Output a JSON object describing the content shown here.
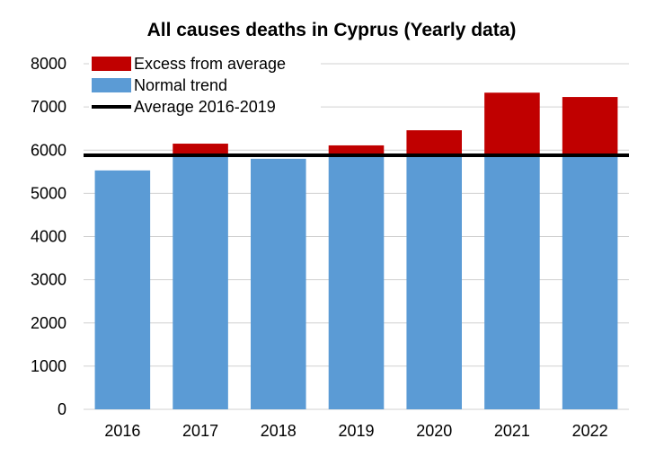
{
  "chart_data": {
    "type": "bar",
    "title": "All causes deaths in Cyprus (Yearly data)",
    "categories": [
      "2016",
      "2017",
      "2018",
      "2019",
      "2020",
      "2021",
      "2022"
    ],
    "series": [
      {
        "name": "Normal trend",
        "color": "#5b9bd5",
        "values": [
          5530,
          5880,
          5800,
          5880,
          5880,
          5880,
          5880
        ]
      },
      {
        "name": "Excess from average",
        "color": "#c00000",
        "values": [
          0,
          270,
          0,
          230,
          580,
          1450,
          1350
        ]
      }
    ],
    "average_line": {
      "name": "Average 2016-2019",
      "value": 5880,
      "color": "#000000"
    },
    "ylim": [
      0,
      8000
    ],
    "yticks": [
      "0",
      "1000",
      "2000",
      "3000",
      "4000",
      "5000",
      "6000",
      "7000",
      "8000"
    ],
    "legend": [
      "Excess from average",
      "Normal trend",
      "Average 2016-2019"
    ],
    "legend_position": "top-left",
    "grid": true,
    "xlabel": "",
    "ylabel": ""
  }
}
